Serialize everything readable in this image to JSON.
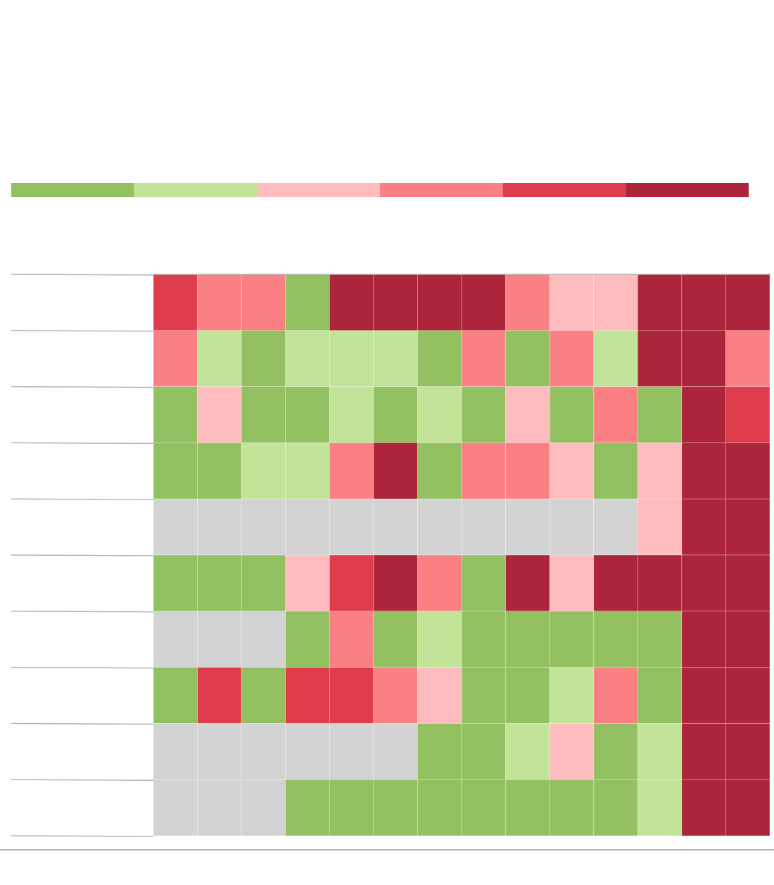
{
  "chart_data": {
    "type": "heatmap",
    "title": "",
    "legend": {
      "placement": "top",
      "colors": [
        "#93c162",
        "#c1e499",
        "#ffbcbf",
        "#fb8083",
        "#e03d4c",
        "#ad253a"
      ]
    },
    "palette": {
      "0": "#93c162",
      "1": "#c1e499",
      "2": "#ffbcbf",
      "3": "#fb8083",
      "4": "#e03d4c",
      "5": "#ad253a",
      "none": "#d3d3d3"
    },
    "row_labels": [
      "",
      "",
      "",
      "",
      "",
      "",
      "",
      "",
      "",
      ""
    ],
    "column_labels": [
      "",
      "",
      "",
      "",
      "",
      "",
      "",
      "",
      "",
      "",
      "",
      "",
      "",
      ""
    ],
    "values": [
      [
        4,
        3,
        3,
        0,
        5,
        5,
        5,
        5,
        3,
        2,
        2,
        5,
        5,
        5
      ],
      [
        3,
        1,
        0,
        1,
        1,
        1,
        0,
        3,
        0,
        3,
        1,
        5,
        5,
        3
      ],
      [
        0,
        2,
        0,
        0,
        1,
        0,
        1,
        0,
        2,
        0,
        3,
        0,
        5,
        4
      ],
      [
        0,
        0,
        1,
        1,
        3,
        5,
        0,
        3,
        3,
        2,
        0,
        2,
        5,
        5
      ],
      [
        null,
        null,
        null,
        null,
        null,
        null,
        null,
        null,
        null,
        null,
        null,
        2,
        5,
        5
      ],
      [
        0,
        0,
        0,
        2,
        4,
        5,
        3,
        0,
        5,
        2,
        5,
        5,
        5,
        5
      ],
      [
        null,
        null,
        null,
        0,
        3,
        0,
        1,
        0,
        0,
        0,
        0,
        0,
        5,
        5
      ],
      [
        0,
        4,
        0,
        4,
        4,
        3,
        2,
        0,
        0,
        1,
        3,
        0,
        5,
        5
      ],
      [
        null,
        null,
        null,
        null,
        null,
        null,
        0,
        0,
        1,
        2,
        0,
        1,
        5,
        5
      ],
      [
        null,
        null,
        null,
        0,
        0,
        0,
        0,
        0,
        0,
        0,
        0,
        1,
        5,
        5
      ]
    ]
  }
}
